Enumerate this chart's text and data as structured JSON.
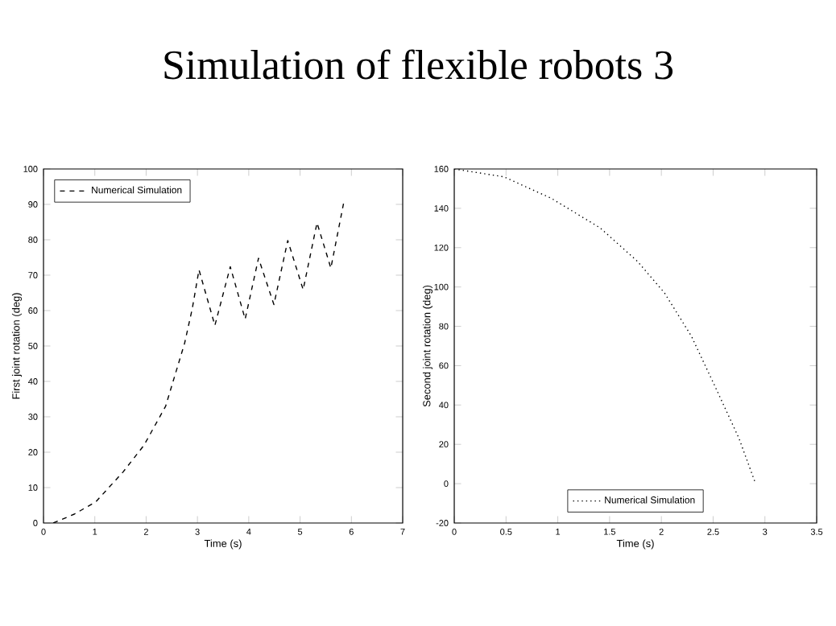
{
  "chart_data": [
    {
      "type": "line",
      "title": "Simulation of flexible robots 3",
      "xlabel": "Time (s)",
      "ylabel": "First joint rotation (deg)",
      "xlim": [
        0,
        7
      ],
      "ylim": [
        0,
        100
      ],
      "xticks": [
        0,
        1,
        2,
        3,
        4,
        5,
        6,
        7
      ],
      "yticks": [
        0,
        10,
        20,
        30,
        40,
        50,
        60,
        70,
        80,
        90,
        100
      ],
      "legend": "top left",
      "line_style": "dashed",
      "series": [
        {
          "name": "Numerical Simulation",
          "color": "#000000",
          "x": [
            0.19,
            0.6,
            1.02,
            1.55,
            1.96,
            2.38,
            2.75,
            2.9,
            3.03,
            3.34,
            3.64,
            3.93,
            4.19,
            4.49,
            4.76,
            5.06,
            5.33,
            5.6,
            5.86
          ],
          "values": [
            0,
            2.5,
            6,
            14.4,
            22,
            33,
            50.8,
            60.6,
            71.5,
            55.8,
            72.4,
            57.6,
            74.8,
            61.7,
            79.8,
            65.9,
            84.8,
            72,
            91.2
          ]
        }
      ]
    },
    {
      "type": "line",
      "xlabel": "Time (s)",
      "ylabel": "Second joint rotation (deg)",
      "xlim": [
        0,
        3.5
      ],
      "ylim": [
        -20,
        160
      ],
      "xticks": [
        0,
        0.5,
        1,
        1.5,
        2,
        2.5,
        3,
        3.5
      ],
      "yticks": [
        -20,
        0,
        20,
        40,
        60,
        80,
        100,
        120,
        140,
        160
      ],
      "legend": "bottom",
      "line_style": "dotted",
      "series": [
        {
          "name": "Numerical Simulation",
          "color": "#000000",
          "x": [
            0,
            0.48,
            0.94,
            1.41,
            1.77,
            2.03,
            2.29,
            2.54,
            2.75,
            2.91
          ],
          "values": [
            160,
            156,
            145,
            130,
            113,
            97,
            75,
            47,
            23,
            0
          ]
        }
      ]
    }
  ]
}
